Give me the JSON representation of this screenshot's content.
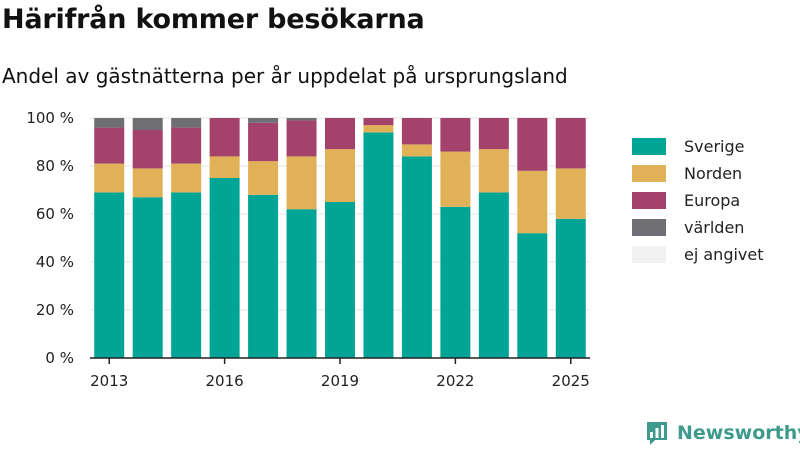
{
  "title": "Härifrån kommer besökarna",
  "subtitle": "Andel av gästnätterna per år uppdelat på ursprungsland",
  "brand": "Newsworthy",
  "chart_data": {
    "type": "bar",
    "stacked": true,
    "x": [
      2013,
      2014,
      2015,
      2016,
      2017,
      2018,
      2019,
      2020,
      2021,
      2022,
      2023,
      2024,
      2025
    ],
    "x_ticks": [
      "2013",
      "2016",
      "2019",
      "2022",
      "2025"
    ],
    "y_ticks": [
      "0 %",
      "20 %",
      "40 %",
      "60 %",
      "80 %",
      "100 %"
    ],
    "ylim": [
      0,
      100
    ],
    "grid": true,
    "legend_position": "right",
    "series": [
      {
        "name": "Sverige",
        "color": "#00a596",
        "values": [
          69,
          67,
          69,
          75,
          68,
          62,
          65,
          94,
          84,
          63,
          69,
          52,
          58
        ]
      },
      {
        "name": "Norden",
        "color": "#e0b157",
        "values": [
          12,
          12,
          12,
          9,
          14,
          22,
          22,
          3,
          5,
          23,
          18,
          26,
          21
        ]
      },
      {
        "name": "Europa",
        "color": "#a3426a",
        "values": [
          15,
          16,
          15,
          16,
          16,
          15,
          13,
          3,
          11,
          14,
          13,
          22,
          21
        ]
      },
      {
        "name": "världen",
        "color": "#6f6e72",
        "values": [
          4,
          5,
          4,
          0,
          2,
          1,
          0,
          0,
          0,
          0,
          0,
          0,
          0
        ]
      },
      {
        "name": "ej angivet",
        "color": "#f2f2f2",
        "values": [
          0,
          0,
          0,
          0,
          0,
          0,
          0,
          0,
          0,
          0,
          0,
          0,
          0
        ]
      }
    ]
  }
}
